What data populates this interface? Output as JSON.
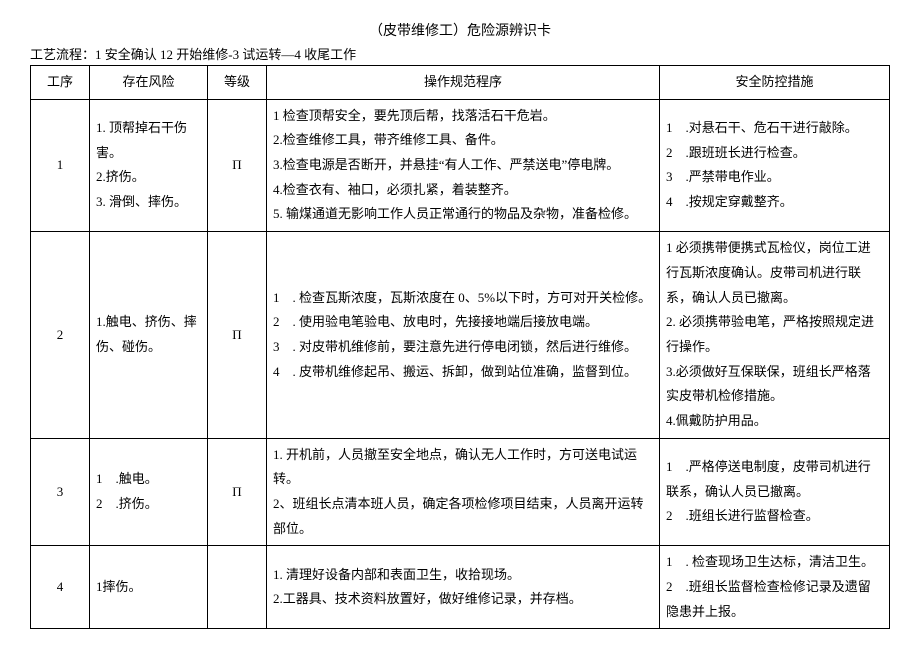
{
  "title": "（皮带维修工）危险源辨识卡",
  "flow": "工艺流程：1 安全确认 12 开始维修-3 试运转—4 收尾工作",
  "headers": {
    "step": "工序",
    "risk": "存在风险",
    "grade": "等级",
    "op": "操作规范程序",
    "safe": "安全防控措施"
  },
  "rows": [
    {
      "step": "1",
      "risk": "1. 顶帮掉石干伤害。\n2.挤伤。\n3. 滑倒、摔伤。",
      "grade": "Π",
      "op": "1 检查顶帮安全，要先顶后帮，找落活石干危岩。\n2.检查维修工具，带齐维修工具、备件。\n3.检查电源是否断开，并悬挂“有人工作、严禁送电”停电牌。\n4.检查衣有、袖口，必须扎紧，着装整齐。\n5. 输煤通道无影响工作人员正常通行的物品及杂物，准备检修。",
      "safe": "1    .对悬石干、危石干进行敲除。\n2    .跟班班长进行检查。\n3    .严禁带电作业。\n4    .按规定穿戴整齐。"
    },
    {
      "step": "2",
      "risk": "1.触电、挤伤、摔伤、碰伤。",
      "grade": "Π",
      "op": "1    . 检查瓦斯浓度，瓦斯浓度在 0、5%以下时，方可对开关检修。\n2    . 使用验电笔验电、放电时，先接接地端后接放电端。\n3    . 对皮带机维修前，要注意先进行停电闭锁，然后进行维修。\n4    . 皮带机维修起吊、搬运、拆卸，做到站位准确，监督到位。",
      "safe": "1 必须携带便携式瓦检仪，岗位工进行瓦斯浓度确认。皮带司机进行联系，确认人员已撤离。\n2. 必须携带验电笔，严格按照规定进行操作。\n3.必须做好互保联保，班组长严格落实皮带机检修措施。\n4.佩戴防护用品。"
    },
    {
      "step": "3",
      "risk": "1    .触电。\n2    .挤伤。",
      "grade": "Π",
      "op": "1. 开机前，人员撤至安全地点，确认无人工作时，方可送电试运转。\n2、班组长点清本班人员，确定各项检修项目结束，人员离开运转部位。",
      "safe": "1    .严格停送电制度，皮带司机进行联系，确认人员已撤离。\n2    .班组长进行监督检查。"
    },
    {
      "step": "4",
      "risk": "1摔伤。",
      "grade": "",
      "op": "1. 清理好设备内部和表面卫生，收拾现场。\n2.工器具、技术资料放置好，做好维修记录，并存档。",
      "safe": "1    . 检查现场卫生达标，清洁卫生。\n2    .班组长监督检查检修记录及遗留隐患并上报。"
    }
  ]
}
